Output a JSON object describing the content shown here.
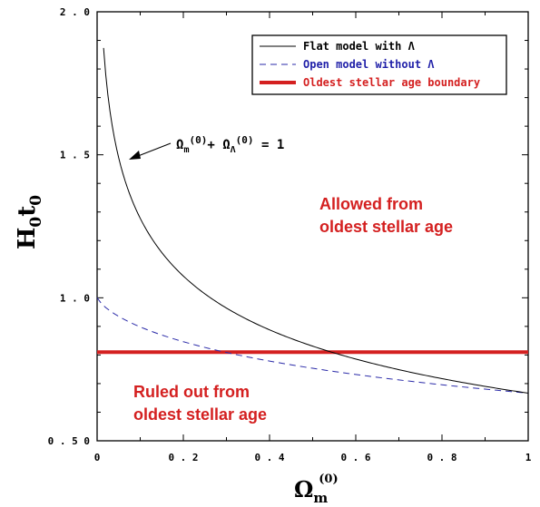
{
  "chart_data": {
    "type": "line",
    "xlim": [
      0,
      1
    ],
    "ylim": [
      0.5,
      2.0
    ],
    "x_ticks": [
      0,
      0.2,
      0.4,
      0.6,
      0.8,
      1
    ],
    "x_tick_labels": [
      "0",
      "0 . 2",
      "0 . 4",
      "0 . 6",
      "0 . 8",
      "1"
    ],
    "y_ticks": [
      0.5,
      1.0,
      1.5,
      2.0
    ],
    "y_tick_labels": [
      "0 . 5 0",
      "1 . 0",
      "1 . 5",
      "2 . 0"
    ],
    "ylabel": "H0t0",
    "xlabel": "Ωm(0)",
    "grid": false,
    "legend_position": "top-right",
    "series": [
      {
        "name": "Flat model with Λ",
        "style": "solid",
        "color": "#000000",
        "x": [
          0.01,
          0.02,
          0.03,
          0.05,
          0.07,
          0.1,
          0.15,
          0.2,
          0.25,
          0.3,
          0.35,
          0.4,
          0.45,
          0.5,
          0.55,
          0.6,
          0.65,
          0.7,
          0.75,
          0.8,
          0.85,
          0.9,
          0.95,
          1.0
        ],
        "y": [
          2.0,
          1.811,
          1.676,
          1.498,
          1.381,
          1.263,
          1.138,
          1.051,
          0.984,
          0.931,
          0.886,
          0.848,
          0.815,
          0.786,
          0.761,
          0.738,
          0.717,
          0.698,
          0.681,
          0.665,
          0.65,
          0.636,
          0.623,
          0.667
        ]
      },
      {
        "name": "Open model without Λ",
        "style": "dashed",
        "color": "#2a2aa8",
        "x": [
          0,
          0.05,
          0.1,
          0.15,
          0.2,
          0.25,
          0.3,
          0.35,
          0.4,
          0.45,
          0.5,
          0.55,
          0.6,
          0.65,
          0.7,
          0.75,
          0.8,
          0.85,
          0.9,
          0.95,
          1.0
        ],
        "y": [
          1.0,
          0.931,
          0.899,
          0.874,
          0.852,
          0.833,
          0.816,
          0.801,
          0.787,
          0.774,
          0.762,
          0.751,
          0.74,
          0.73,
          0.721,
          0.712,
          0.703,
          0.695,
          0.688,
          0.68,
          0.667
        ]
      },
      {
        "name": "Oldest stellar age boundary",
        "style": "thick",
        "color": "#d42020",
        "x": [
          0,
          1
        ],
        "y": [
          0.81,
          0.81
        ]
      }
    ],
    "annotations": {
      "allowed_line1": "Allowed from",
      "allowed_line2": "oldest stellar age",
      "ruled_line1": "Ruled out from",
      "ruled_line2": "oldest stellar age",
      "equation": "Ωm(0)+ ΩΛ(0) = 1"
    },
    "colors": {
      "flat": "#000000",
      "open": "#2a2aa8",
      "boundary": "#d42020",
      "annotation": "#d42020",
      "legend_open_text": "#1f1fa8"
    }
  }
}
